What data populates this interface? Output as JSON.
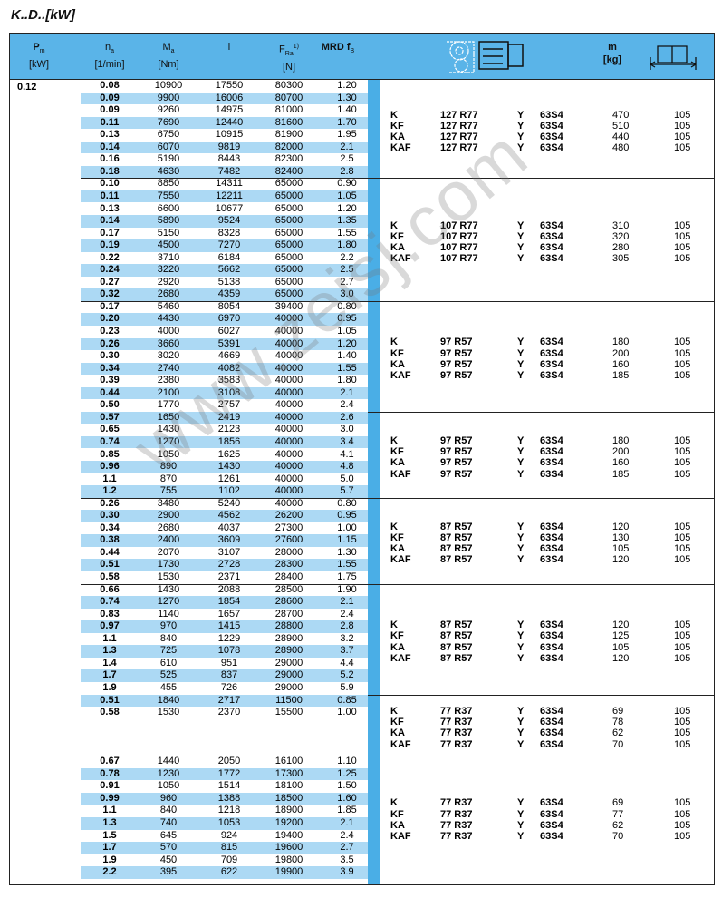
{
  "title": "K..D..[kW]",
  "watermark": "www.zeisj.com",
  "colors": {
    "header": "#5ab4e8",
    "row_shade": "#acd9f4",
    "stripe": "#4aaee6"
  },
  "header": {
    "pm": "P",
    "pm_sub": "m",
    "pm_unit": "[kW]",
    "na": "n",
    "na_sub": "a",
    "na_unit": "[1/min]",
    "ma": "M",
    "ma_sub": "a",
    "ma_unit": "[Nm]",
    "i": "i",
    "fra": "F",
    "fra_sub": "Ra",
    "fra_sup": "1)",
    "fra_unit": "[N]",
    "mrd": "MRD f",
    "mrd_sub": "B",
    "gearbox_icon": "gearmotor-drawing-icon",
    "m": "m",
    "m_unit": "[kg]",
    "page_icon": "book-page-icon"
  },
  "pm_value": "0.12",
  "groups": [
    {
      "rows": [
        [
          "0.08",
          "10900",
          "17550",
          "80300",
          "1.20"
        ],
        [
          "0.09",
          "9900",
          "16006",
          "80700",
          "1.30"
        ],
        [
          "0.09",
          "9260",
          "14975",
          "81000",
          "1.40"
        ],
        [
          "0.11",
          "7690",
          "12440",
          "81600",
          "1.70"
        ],
        [
          "0.13",
          "6750",
          "10915",
          "81900",
          "1.95"
        ],
        [
          "0.14",
          "6070",
          "9819",
          "82000",
          "2.1"
        ],
        [
          "0.16",
          "5190",
          "8443",
          "82300",
          "2.5"
        ],
        [
          "0.18",
          "4630",
          "7482",
          "82400",
          "2.8"
        ]
      ],
      "types": [
        [
          "K",
          "127 R77",
          "Y",
          "63S4",
          "470",
          "105"
        ],
        [
          "KF",
          "127 R77",
          "Y",
          "63S4",
          "510",
          "105"
        ],
        [
          "KA",
          "127 R77",
          "Y",
          "63S4",
          "440",
          "105"
        ],
        [
          "KAF",
          "127 R77",
          "Y",
          "63S4",
          "480",
          "105"
        ]
      ]
    },
    {
      "rows": [
        [
          "0.10",
          "8850",
          "14311",
          "65000",
          "0.90"
        ],
        [
          "0.11",
          "7550",
          "12211",
          "65000",
          "1.05"
        ],
        [
          "0.13",
          "6600",
          "10677",
          "65000",
          "1.20"
        ],
        [
          "0.14",
          "5890",
          "9524",
          "65000",
          "1.35"
        ],
        [
          "0.17",
          "5150",
          "8328",
          "65000",
          "1.55"
        ],
        [
          "0.19",
          "4500",
          "7270",
          "65000",
          "1.80"
        ],
        [
          "0.22",
          "3710",
          "6184",
          "65000",
          "2.2"
        ],
        [
          "0.24",
          "3220",
          "5662",
          "65000",
          "2.5"
        ],
        [
          "0.27",
          "2920",
          "5138",
          "65000",
          "2.7"
        ],
        [
          "0.32",
          "2680",
          "4359",
          "65000",
          "3.0"
        ]
      ],
      "types": [
        [
          "K",
          "107 R77",
          "Y",
          "63S4",
          "310",
          "105"
        ],
        [
          "KF",
          "107 R77",
          "Y",
          "63S4",
          "320",
          "105"
        ],
        [
          "KA",
          "107 R77",
          "Y",
          "63S4",
          "280",
          "105"
        ],
        [
          "KAF",
          "107 R77",
          "Y",
          "63S4",
          "305",
          "105"
        ]
      ]
    },
    {
      "rows": [
        [
          "0.17",
          "5460",
          "8054",
          "39400",
          "0.80"
        ],
        [
          "0.20",
          "4430",
          "6970",
          "40000",
          "0.95"
        ],
        [
          "0.23",
          "4000",
          "6027",
          "40000",
          "1.05"
        ],
        [
          "0.26",
          "3660",
          "5391",
          "40000",
          "1.20"
        ],
        [
          "0.30",
          "3020",
          "4669",
          "40000",
          "1.40"
        ],
        [
          "0.34",
          "2740",
          "4082",
          "40000",
          "1.55"
        ],
        [
          "0.39",
          "2380",
          "3583",
          "40000",
          "1.80"
        ],
        [
          "0.44",
          "2100",
          "3108",
          "40000",
          "2.1"
        ],
        [
          "0.50",
          "1770",
          "2757",
          "40000",
          "2.4"
        ]
      ],
      "types": [
        [
          "K",
          "97 R57",
          "Y",
          "63S4",
          "180",
          "105"
        ],
        [
          "KF",
          "97 R57",
          "Y",
          "63S4",
          "200",
          "105"
        ],
        [
          "KA",
          "97 R57",
          "Y",
          "63S4",
          "160",
          "105"
        ],
        [
          "KAF",
          "97 R57",
          "Y",
          "63S4",
          "185",
          "105"
        ]
      ]
    },
    {
      "rows": [
        [
          "0.57",
          "1650",
          "2419",
          "40000",
          "2.6"
        ],
        [
          "0.65",
          "1430",
          "2123",
          "40000",
          "3.0"
        ],
        [
          "0.74",
          "1270",
          "1856",
          "40000",
          "3.4"
        ],
        [
          "0.85",
          "1050",
          "1625",
          "40000",
          "4.1"
        ],
        [
          "0.96",
          "890",
          "1430",
          "40000",
          "4.8"
        ],
        [
          "1.1",
          "870",
          "1261",
          "40000",
          "5.0"
        ],
        [
          "1.2",
          "755",
          "1102",
          "40000",
          "5.7"
        ]
      ],
      "types": [
        [
          "K",
          "97 R57",
          "Y",
          "63S4",
          "180",
          "105"
        ],
        [
          "KF",
          "97 R57",
          "Y",
          "63S4",
          "200",
          "105"
        ],
        [
          "KA",
          "97 R57",
          "Y",
          "63S4",
          "160",
          "105"
        ],
        [
          "KAF",
          "97 R57",
          "Y",
          "63S4",
          "185",
          "105"
        ]
      ]
    },
    {
      "rows": [
        [
          "0.26",
          "3480",
          "5240",
          "40000",
          "0.80"
        ],
        [
          "0.30",
          "2900",
          "4562",
          "26200",
          "0.95"
        ],
        [
          "0.34",
          "2680",
          "4037",
          "27300",
          "1.00"
        ],
        [
          "0.38",
          "2400",
          "3609",
          "27600",
          "1.15"
        ],
        [
          "0.44",
          "2070",
          "3107",
          "28000",
          "1.30"
        ],
        [
          "0.51",
          "1730",
          "2728",
          "28300",
          "1.55"
        ],
        [
          "0.58",
          "1530",
          "2371",
          "28400",
          "1.75"
        ]
      ],
      "types": [
        [
          "K",
          "87 R57",
          "Y",
          "63S4",
          "120",
          "105"
        ],
        [
          "KF",
          "87 R57",
          "Y",
          "63S4",
          "130",
          "105"
        ],
        [
          "KA",
          "87 R57",
          "Y",
          "63S4",
          "105",
          "105"
        ],
        [
          "KAF",
          "87 R57",
          "Y",
          "63S4",
          "120",
          "105"
        ]
      ]
    },
    {
      "rows": [
        [
          "0.66",
          "1430",
          "2088",
          "28500",
          "1.90"
        ],
        [
          "0.74",
          "1270",
          "1854",
          "28600",
          "2.1"
        ],
        [
          "0.83",
          "1140",
          "1657",
          "28700",
          "2.4"
        ],
        [
          "0.97",
          "970",
          "1415",
          "28800",
          "2.8"
        ],
        [
          "1.1",
          "840",
          "1229",
          "28900",
          "3.2"
        ],
        [
          "1.3",
          "725",
          "1078",
          "28900",
          "3.7"
        ],
        [
          "1.4",
          "610",
          "951",
          "29000",
          "4.4"
        ],
        [
          "1.7",
          "525",
          "837",
          "29000",
          "5.2"
        ],
        [
          "1.9",
          "455",
          "726",
          "29000",
          "5.9"
        ]
      ],
      "types": [
        [
          "K",
          "87 R57",
          "Y",
          "63S4",
          "120",
          "105"
        ],
        [
          "KF",
          "87 R57",
          "Y",
          "63S4",
          "125",
          "105"
        ],
        [
          "KA",
          "87 R57",
          "Y",
          "63S4",
          "105",
          "105"
        ],
        [
          "KAF",
          "87 R57",
          "Y",
          "63S4",
          "120",
          "105"
        ]
      ]
    },
    {
      "rows": [
        [
          "0.51",
          "1840",
          "2717",
          "11500",
          "0.85"
        ],
        [
          "0.58",
          "1530",
          "2370",
          "15500",
          "1.00"
        ]
      ],
      "types": [
        [
          "K",
          "77 R37",
          "Y",
          "63S4",
          "69",
          "105"
        ],
        [
          "KF",
          "77 R37",
          "Y",
          "63S4",
          "78",
          "105"
        ],
        [
          "KA",
          "77 R37",
          "Y",
          "63S4",
          "62",
          "105"
        ],
        [
          "KAF",
          "77 R37",
          "Y",
          "63S4",
          "70",
          "105"
        ]
      ]
    },
    {
      "rows": [
        [
          "0.67",
          "1440",
          "2050",
          "16100",
          "1.10"
        ],
        [
          "0.78",
          "1230",
          "1772",
          "17300",
          "1.25"
        ],
        [
          "0.91",
          "1050",
          "1514",
          "18100",
          "1.50"
        ],
        [
          "0.99",
          "960",
          "1388",
          "18500",
          "1.60"
        ],
        [
          "1.1",
          "840",
          "1218",
          "18900",
          "1.85"
        ],
        [
          "1.3",
          "740",
          "1053",
          "19200",
          "2.1"
        ],
        [
          "1.5",
          "645",
          "924",
          "19400",
          "2.4"
        ],
        [
          "1.7",
          "570",
          "815",
          "19600",
          "2.7"
        ],
        [
          "1.9",
          "450",
          "709",
          "19800",
          "3.5"
        ],
        [
          "2.2",
          "395",
          "622",
          "19900",
          "3.9"
        ]
      ],
      "types": [
        [
          "K",
          "77 R37",
          "Y",
          "63S4",
          "69",
          "105"
        ],
        [
          "KF",
          "77 R37",
          "Y",
          "63S4",
          "77",
          "105"
        ],
        [
          "KA",
          "77 R37",
          "Y",
          "63S4",
          "62",
          "105"
        ],
        [
          "KAF",
          "77 R37",
          "Y",
          "63S4",
          "70",
          "105"
        ]
      ]
    }
  ]
}
